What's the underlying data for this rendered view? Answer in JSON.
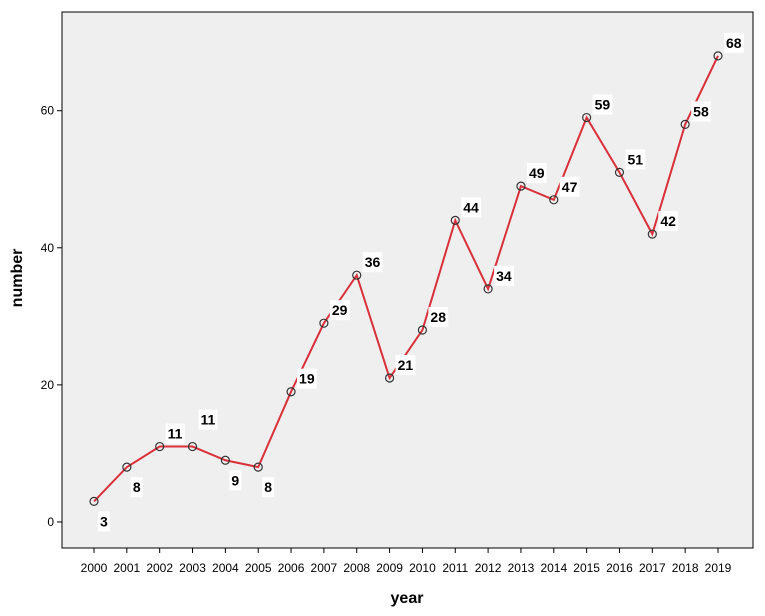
{
  "chart_data": {
    "type": "line",
    "title": "",
    "xlabel": "year",
    "ylabel": "number",
    "x": [
      "2000",
      "2001",
      "2002",
      "2003",
      "2004",
      "2005",
      "2006",
      "2007",
      "2008",
      "2009",
      "2010",
      "2011",
      "2012",
      "2013",
      "2014",
      "2015",
      "2016",
      "2017",
      "2018",
      "2019"
    ],
    "series": [
      {
        "values": [
          3,
          8,
          11,
          11,
          9,
          8,
          19,
          29,
          36,
          21,
          28,
          44,
          34,
          49,
          47,
          59,
          51,
          42,
          58,
          68
        ]
      }
    ],
    "yticks": [
      0,
      20,
      40,
      60
    ],
    "ylim": [
      -3.8,
      74.4
    ],
    "grid": false,
    "legend": "none",
    "colors": {
      "line": "#d9303a",
      "marker_stroke": "#333333",
      "plot_background": "#efefef",
      "frame": "#000000"
    }
  }
}
